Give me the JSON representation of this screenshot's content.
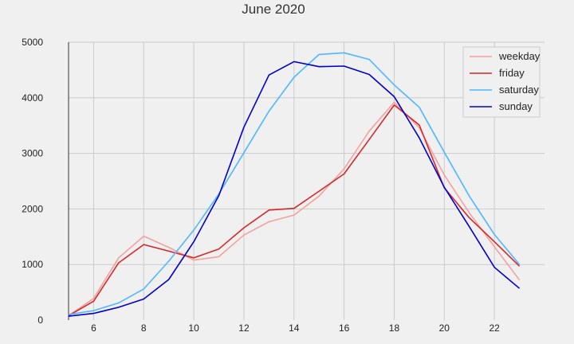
{
  "chart_data": {
    "type": "line",
    "title": "June 2020",
    "xlabel": "",
    "ylabel": "",
    "xlim": [
      5,
      24
    ],
    "ylim": [
      0,
      5000
    ],
    "x_ticks": [
      6,
      8,
      10,
      12,
      14,
      16,
      18,
      20,
      22
    ],
    "y_ticks": [
      0,
      1000,
      2000,
      3000,
      4000,
      5000
    ],
    "grid": true,
    "legend_position": "top-right",
    "x": [
      5,
      6,
      7,
      8,
      9,
      10,
      11,
      12,
      13,
      14,
      15,
      16,
      17,
      18,
      19,
      20,
      21,
      22,
      23
    ],
    "series": [
      {
        "name": "weekday",
        "color": "#f4a0a0",
        "values": [
          80,
          390,
          1120,
          1510,
          1310,
          1080,
          1140,
          1530,
          1770,
          1890,
          2230,
          2720,
          3400,
          3920,
          3460,
          2610,
          1930,
          1320,
          720
        ]
      },
      {
        "name": "friday",
        "color": "#d62728",
        "values": [
          80,
          340,
          1030,
          1360,
          1240,
          1120,
          1280,
          1660,
          1980,
          2010,
          2320,
          2630,
          3250,
          3870,
          3510,
          2380,
          1840,
          1410,
          970
        ]
      },
      {
        "name": "saturday",
        "color": "#4db8ff",
        "values": [
          100,
          170,
          310,
          560,
          1060,
          1620,
          2270,
          3010,
          3760,
          4370,
          4780,
          4810,
          4690,
          4230,
          3830,
          3020,
          2230,
          1540,
          1000
        ]
      },
      {
        "name": "sunday",
        "color": "#0000cc",
        "values": [
          70,
          120,
          230,
          380,
          730,
          1410,
          2240,
          3470,
          4410,
          4650,
          4560,
          4570,
          4420,
          4020,
          3280,
          2390,
          1680,
          950,
          570
        ]
      }
    ]
  }
}
